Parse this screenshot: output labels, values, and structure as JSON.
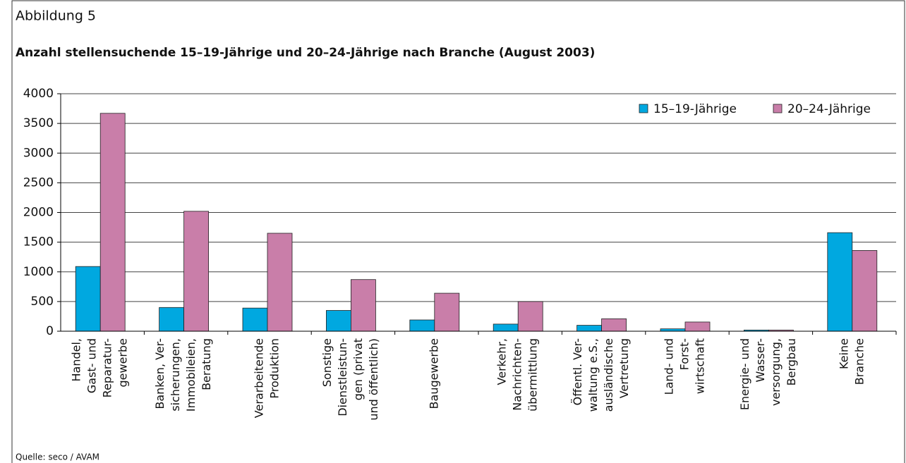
{
  "chart_data": {
    "type": "bar",
    "figure_label": "Abbildung 5",
    "title": "Anzahl stellensuchende 15–19-Jährige und 20–24-Jährige nach Branche (August 2003)",
    "source": "Quelle: seco / AVAM",
    "categories": [
      [
        "Handel,",
        "Gast- und",
        "Reparatur-",
        "gewerbe"
      ],
      [
        "Banken, Ver-",
        "sicherungen,",
        "Immobileien,",
        "Beratung"
      ],
      [
        "Verarbeitende",
        "Produktion"
      ],
      [
        "Sonstige",
        "Dienstleistun-",
        "gen (privat",
        "und öffentlich)"
      ],
      [
        "Baugewerbe"
      ],
      [
        "Verkehr,",
        "Nachrichten-",
        "übermittlung"
      ],
      [
        "Öffentl. Ver-",
        "waltung e.S.,",
        "ausländische",
        "Vertretung"
      ],
      [
        "Land- und",
        "Forst-",
        "wirtschaft"
      ],
      [
        "Energie- und",
        "Wasser-",
        "versorgung,",
        "Bergbau"
      ],
      [
        "Keine",
        "Branche"
      ]
    ],
    "series": [
      {
        "name": "15–19-Jährige",
        "color": "#00a8e0",
        "values": [
          1090,
          400,
          390,
          350,
          190,
          120,
          100,
          40,
          20,
          1660
        ]
      },
      {
        "name": "20–24-Jährige",
        "color": "#c97ea9",
        "values": [
          3670,
          2020,
          1650,
          870,
          640,
          500,
          210,
          155,
          20,
          1360
        ]
      }
    ],
    "ylim": [
      0,
      4000
    ],
    "yticks": [
      0,
      500,
      1000,
      1500,
      2000,
      2500,
      3000,
      3500,
      4000
    ],
    "grid": true,
    "legend": "top-right"
  }
}
